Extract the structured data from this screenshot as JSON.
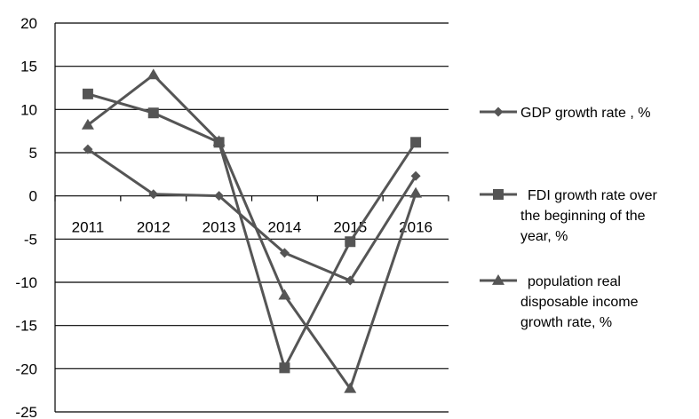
{
  "chart_data": {
    "type": "line",
    "categories": [
      "2011",
      "2012",
      "2013",
      "2014",
      "2015",
      "2016"
    ],
    "ylim": [
      -25,
      20
    ],
    "y_ticks": [
      20,
      15,
      10,
      5,
      0,
      -5,
      -10,
      -15,
      -20,
      -25
    ],
    "grid": true,
    "legend_placement": "right",
    "series": [
      {
        "name": "GDP growth rate , %",
        "marker": "diamond",
        "values": [
          5.4,
          0.2,
          0.0,
          -6.6,
          -9.8,
          2.3
        ]
      },
      {
        "name": "FDI growth rate over the beginning of the year, %",
        "legend_lines": [
          "FDI growth rate over",
          "the beginning of the",
          "year, %"
        ],
        "marker": "square",
        "values": [
          11.8,
          9.6,
          6.2,
          -19.9,
          -5.3,
          6.2
        ]
      },
      {
        "name": "population real disposable income growth rate, %",
        "legend_lines": [
          "population real",
          "disposable income",
          "growth rate, %"
        ],
        "marker": "triangle",
        "values": [
          8.2,
          14.0,
          6.3,
          -11.5,
          -22.3,
          0.3
        ]
      }
    ],
    "colors": {
      "line": "#555555",
      "marker": "#555555",
      "axis": "#000000",
      "grid": "#000000"
    }
  }
}
